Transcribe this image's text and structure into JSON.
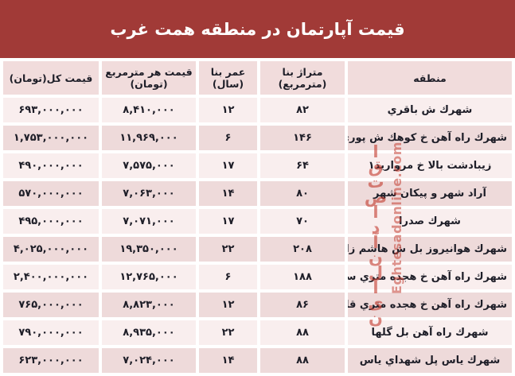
{
  "title": "قیمت آپارتمان در منطقه همت غرب",
  "colors": {
    "title_bg": "#a13a37",
    "header_bg": "#f1dcdc",
    "row_light": "#f9eeee",
    "row_dark": "#eedada",
    "text": "#1e1e28",
    "watermark": "#c43e32"
  },
  "watermark": {
    "fa": "اقتصاد آنلاین",
    "en": "Eghtesadonline.com"
  },
  "table": {
    "headers": [
      "منطقه",
      "متراژ بنا (مترمربع)",
      "عمر بنا (سال)",
      "قیمت هر مترمربع (تومان)",
      "قیمت کل(تومان)"
    ],
    "rows": [
      {
        "region": "شهرك ش باقري",
        "area": "۸۲",
        "age": "۱۲",
        "price_per_m2": "۸,۴۱۰,۰۰۰",
        "total_price": "۶۹۳,۰۰۰,۰۰۰"
      },
      {
        "region": "شهرك راه آهن خ كوهك ش پوري خ خاكي",
        "area": "۱۴۶",
        "age": "۶",
        "price_per_m2": "۱۱,۹۶۹,۰۰۰",
        "total_price": "۱,۷۵۳,۰۰۰,۰۰۰"
      },
      {
        "region": "زيبادشت بالا خ مرواريد۱",
        "area": "۶۴",
        "age": "۱۷",
        "price_per_m2": "۷,۵۷۵,۰۰۰",
        "total_price": "۴۹۰,۰۰۰,۰۰۰"
      },
      {
        "region": "آراد شهر و پيكان شهر",
        "area": "۸۰",
        "age": "۱۴",
        "price_per_m2": "۷,۰۶۳,۰۰۰",
        "total_price": "۵۷۰,۰۰۰,۰۰۰"
      },
      {
        "region": "شهرك صدرا",
        "area": "۷۰",
        "age": "۱۷",
        "price_per_m2": "۷,۰۷۱,۰۰۰",
        "total_price": "۴۹۵,۰۰۰,۰۰۰"
      },
      {
        "region": "شهرك هوانيروز بل ش هاشم زاده",
        "area": "۲۰۸",
        "age": "۲۲",
        "price_per_m2": "۱۹,۳۵۰,۰۰۰",
        "total_price": "۴,۰۲۵,۰۰۰,۰۰۰"
      },
      {
        "region": "شهرك راه آهن خ هجده متري سروستان",
        "area": "۱۸۸",
        "age": "۶",
        "price_per_m2": "۱۲,۷۶۵,۰۰۰",
        "total_price": "۲,۴۰۰,۰۰۰,۰۰۰"
      },
      {
        "region": "شهرك راه آهن خ هجده متري قائم",
        "area": "۸۶",
        "age": "۱۲",
        "price_per_m2": "۸,۸۲۳,۰۰۰",
        "total_price": "۷۶۵,۰۰۰,۰۰۰"
      },
      {
        "region": "شهرك راه آهن بل گلها",
        "area": "۸۸",
        "age": "۲۲",
        "price_per_m2": "۸,۹۳۵,۰۰۰",
        "total_price": "۷۹۰,۰۰۰,۰۰۰"
      },
      {
        "region": "شهرك ياس پل شهداي ياس",
        "area": "۸۸",
        "age": "۱۴",
        "price_per_m2": "۷,۰۲۴,۰۰۰",
        "total_price": "۶۲۳,۰۰۰,۰۰۰"
      }
    ]
  }
}
